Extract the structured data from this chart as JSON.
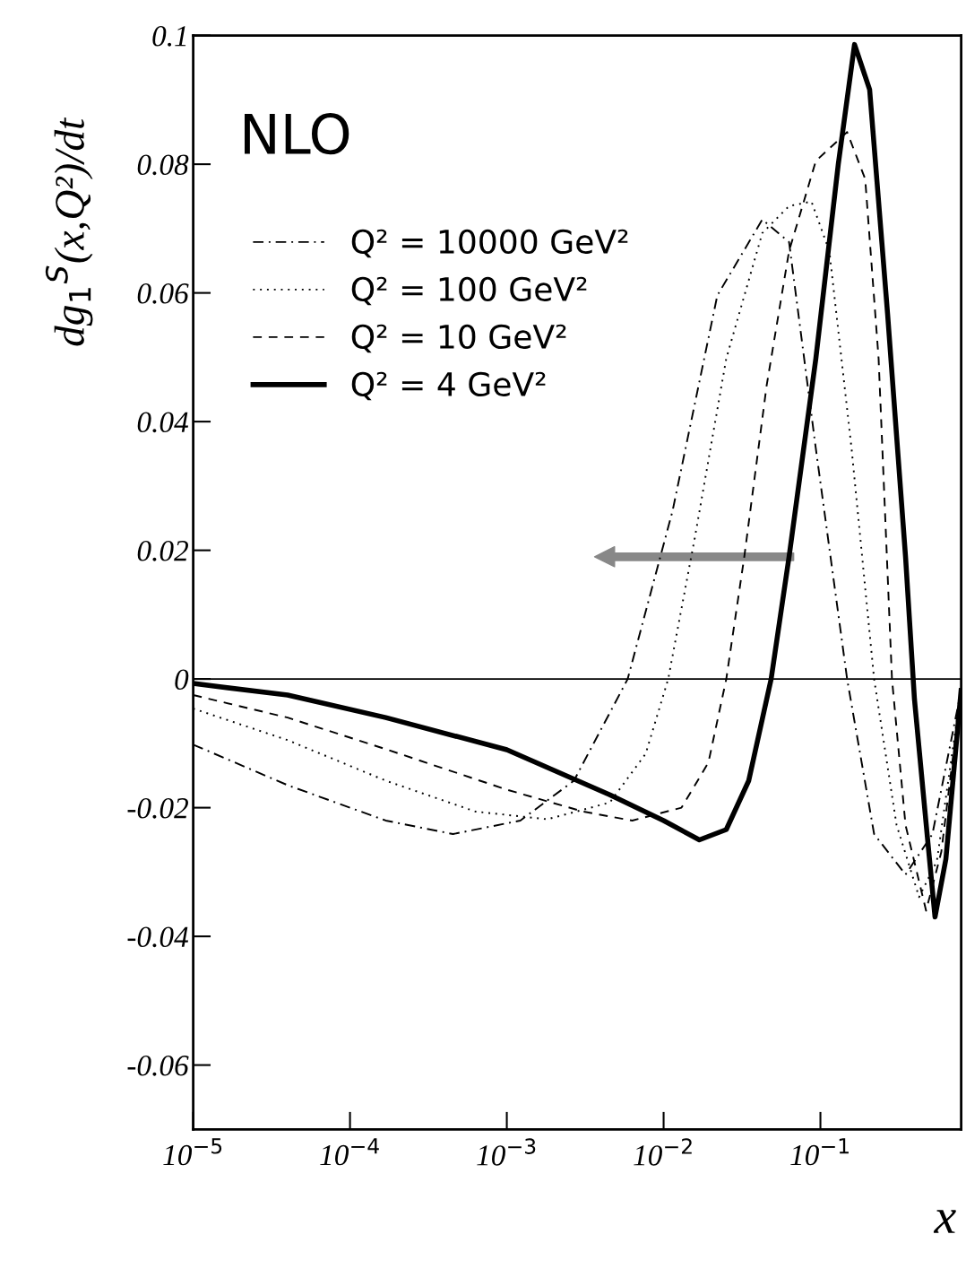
{
  "chart_data": {
    "type": "line",
    "xlabel": "x",
    "ylabel": "dg$_{1}$$^{S}$(x,Q²)/dt",
    "log": "x",
    "legend": "top left",
    "grid": false,
    "marker": "none",
    "xlim": [
      1e-05,
      0.79
    ],
    "ylim": [
      -0.07,
      0.1
    ],
    "xticks": [
      {
        "value": 1e-05,
        "label": "10$^{−5}$"
      },
      {
        "value": 0.0001,
        "label": "10$^{−4}$"
      },
      {
        "value": 0.001,
        "label": "10$^{−3}$"
      },
      {
        "value": 0.01,
        "label": "10$^{−2}$"
      },
      {
        "value": 0.1,
        "label": "10$^{−1}$"
      }
    ],
    "yticks": [
      {
        "value": -0.06,
        "label": "-0.06"
      },
      {
        "value": -0.04,
        "label": "-0.04"
      },
      {
        "value": -0.02,
        "label": "-0.02"
      },
      0,
      0.02,
      0.04,
      0.06,
      0.08,
      0.1
    ],
    "ref_lines": [
      {
        "axis": "y",
        "value": 0,
        "color": "#000000",
        "line_style": "solid"
      }
    ],
    "annotations": [
      "NLO"
    ],
    "series": [
      {
        "name": "Q² = 10000 GeV²",
        "color": "#000000",
        "line_style": "dashdot",
        "x": [
          1e-05,
          4e-05,
          0.000169,
          0.000454,
          0.00122,
          0.00268,
          0.0059,
          0.0114,
          0.022,
          0.0426,
          0.0631,
          0.0935,
          0.148,
          0.22,
          0.349,
          0.518,
          0.789
        ],
        "values": [
          -0.0102,
          -0.0165,
          -0.022,
          -0.0241,
          -0.022,
          -0.0158,
          0,
          0.0261,
          0.0596,
          0.0714,
          0.0679,
          0.0358,
          0,
          -0.0241,
          -0.0304,
          -0.0241,
          -0.0018
        ]
      },
      {
        "name": "Q² = 100 GeV²",
        "color": "#000000",
        "line_style": "dotted",
        "x": [
          1e-05,
          4e-05,
          0.000169,
          0.000631,
          0.00181,
          0.00454,
          0.00769,
          0.0107,
          0.0158,
          0.0251,
          0.0426,
          0.0631,
          0.0877,
          0.114,
          0.158,
          0.22,
          0.306,
          0.426,
          0.553,
          0.789
        ],
        "values": [
          -0.0046,
          -0.0095,
          -0.0158,
          -0.0206,
          -0.0218,
          -0.0192,
          -0.0116,
          0,
          0.0219,
          0.0498,
          0.0693,
          0.0735,
          0.0742,
          0.0665,
          0.0358,
          0,
          -0.0227,
          -0.0339,
          -0.0283,
          -0.0018
        ]
      },
      {
        "name": "Q² = 10 GeV²",
        "color": "#000000",
        "line_style": "dashed",
        "x": [
          1e-05,
          4e-05,
          0.000169,
          0.001,
          0.00306,
          0.00631,
          0.013,
          0.0193,
          0.0251,
          0.0327,
          0.0454,
          0.0631,
          0.0935,
          0.148,
          0.193,
          0.235,
          0.286,
          0.349,
          0.472,
          0.59,
          0.789
        ],
        "values": [
          -0.0025,
          -0.006,
          -0.0109,
          -0.0172,
          -0.0206,
          -0.022,
          -0.02,
          -0.013,
          0,
          0.019,
          0.0456,
          0.0665,
          0.0805,
          0.085,
          0.0777,
          0.0498,
          0,
          -0.0227,
          -0.036,
          -0.0269,
          -0.0018
        ]
      },
      {
        "name": "Q² = 4 GeV²",
        "color": "#000000",
        "line_style": "solid",
        "x": [
          1e-05,
          4e-05,
          0.000169,
          0.001,
          0.00454,
          0.01,
          0.0169,
          0.0251,
          0.0349,
          0.0485,
          0.0631,
          0.0935,
          0.13,
          0.165,
          0.206,
          0.268,
          0.349,
          0.398,
          0.485,
          0.538,
          0.631,
          0.789
        ],
        "values": [
          -0.0007,
          -0.0025,
          -0.006,
          -0.011,
          -0.018,
          -0.022,
          -0.025,
          -0.0234,
          -0.0158,
          0,
          0.019,
          0.0498,
          0.08,
          0.0986,
          0.0916,
          0.0568,
          0.019,
          -0.0032,
          -0.0255,
          -0.037,
          -0.028,
          -0.0018
        ]
      }
    ]
  }
}
